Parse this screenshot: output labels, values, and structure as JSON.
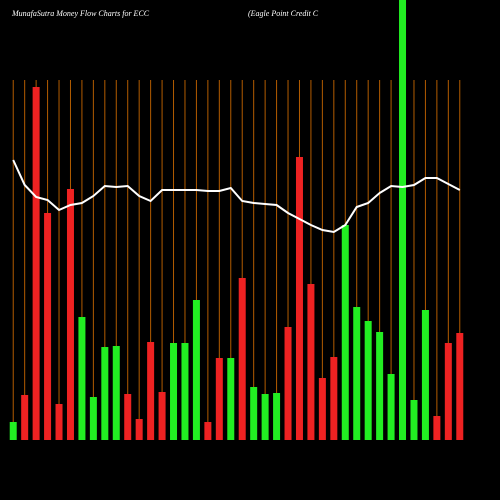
{
  "chart_data": {
    "type": "bar",
    "title": "MunafaSutra  Money Flow  Charts for ECC",
    "subtitle": "(Eagle   Point Credit C",
    "categories": [
      null,
      null,
      null,
      null,
      null,
      null,
      null,
      null,
      null,
      null,
      null,
      null,
      null,
      null,
      null,
      null,
      null,
      null,
      null,
      null,
      null,
      null,
      null,
      null,
      null,
      null,
      null,
      null,
      null,
      null,
      null,
      null,
      null,
      null,
      null,
      null,
      null,
      null,
      null,
      null
    ],
    "ylim": [
      0,
      440
    ],
    "grid": true,
    "grid_color": "#b35c00",
    "bars": {
      "values": [
        18,
        45,
        353,
        227,
        36,
        251,
        123,
        43,
        93,
        94,
        46,
        21,
        98,
        48,
        97,
        97,
        140,
        18,
        82,
        82,
        162,
        53,
        46,
        47,
        113,
        283,
        156,
        62,
        83,
        215,
        133,
        119,
        108,
        66,
        440,
        40,
        130,
        24,
        97,
        107
      ],
      "colors": [
        "#22ee22",
        "#ee2222",
        "#ee2222",
        "#ee2222",
        "#ee2222",
        "#ee2222",
        "#22ee22",
        "#22ee22",
        "#22ee22",
        "#22ee22",
        "#ee2222",
        "#ee2222",
        "#ee2222",
        "#ee2222",
        "#22ee22",
        "#22ee22",
        "#22ee22",
        "#ee2222",
        "#ee2222",
        "#22ee22",
        "#ee2222",
        "#22ee22",
        "#22ee22",
        "#22ee22",
        "#ee2222",
        "#ee2222",
        "#ee2222",
        "#ee2222",
        "#ee2222",
        "#22ee22",
        "#22ee22",
        "#22ee22",
        "#22ee22",
        "#22ee22",
        "#22ee22",
        "#22ee22",
        "#22ee22",
        "#ee2222",
        "#ee2222",
        "#ee2222"
      ]
    },
    "line": {
      "color": "#ffffff",
      "values": [
        280,
        255,
        243,
        240,
        230,
        235,
        237,
        244,
        254,
        253,
        254,
        244,
        239,
        250,
        250,
        250,
        250,
        249,
        249,
        252,
        239,
        237,
        236,
        235,
        227,
        221,
        215,
        210,
        208,
        215,
        233,
        237,
        247,
        254,
        253,
        255,
        262,
        262,
        256,
        250
      ]
    }
  }
}
